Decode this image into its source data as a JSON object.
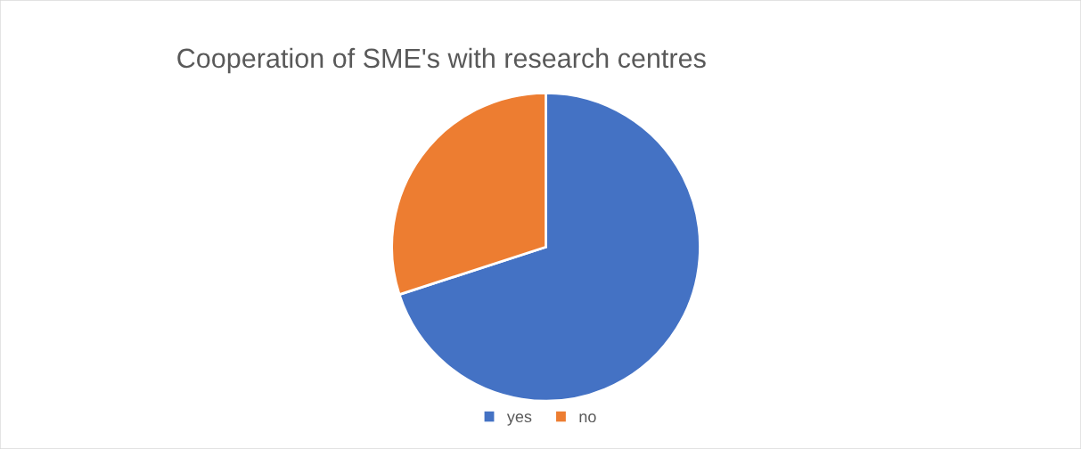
{
  "chart_data": {
    "type": "pie",
    "title": "Cooperation of SME's with research centres",
    "categories": [
      "yes",
      "no"
    ],
    "values": [
      70,
      30
    ],
    "colors": [
      "#4472c4",
      "#ed7d31"
    ],
    "legend": "bottom"
  }
}
